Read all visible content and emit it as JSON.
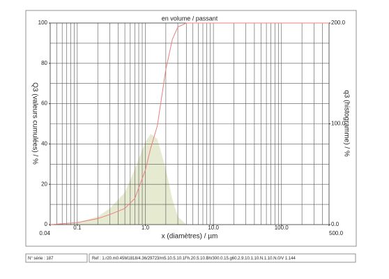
{
  "chart_data": {
    "type": "psd",
    "title": "en volume / passant",
    "xlabel": "x (diamètres) / µm",
    "ylabel": "Q3 (valeurs cumulées) / %",
    "y2label": "q3 (histogramme) / %",
    "xscale": "log",
    "xlim": [
      0.04,
      500
    ],
    "xticks": [
      0.04,
      0.1,
      {
        "value": 1,
        "label": "1.0"
      },
      {
        "value": 10,
        "label": "10.0"
      },
      {
        "value": 100,
        "label": "100.0"
      },
      {
        "value": 500,
        "label": "500.0"
      }
    ],
    "xgrid": [
      0.05,
      0.06,
      0.07,
      0.08,
      0.09,
      0.1,
      0.2,
      0.3,
      0.4,
      0.5,
      0.6,
      0.7,
      0.8,
      0.9,
      1,
      2,
      3,
      4,
      5,
      6,
      7,
      8,
      9,
      10,
      20,
      30,
      40,
      50,
      60,
      70,
      80,
      90,
      100,
      200,
      300,
      400
    ],
    "ylim": [
      0,
      100
    ],
    "yticks": [
      0,
      20,
      40,
      60,
      80,
      100
    ],
    "ygrid": [
      10,
      20,
      30,
      40,
      50,
      60,
      70,
      80,
      90
    ],
    "y2lim": [
      0,
      200
    ],
    "y2ticks": [
      {
        "value": 0,
        "label": "0.0"
      },
      {
        "value": 100,
        "label": "100.0"
      },
      {
        "value": 200,
        "label": "200.0"
      }
    ],
    "x": [
      0.04,
      0.1,
      0.2,
      0.3,
      0.5,
      0.7,
      1,
      1.2,
      1.5,
      2,
      2.5,
      3,
      4,
      500
    ],
    "series": [
      {
        "kind": "line",
        "color": "#e88080",
        "values": [
          0,
          1,
          3,
          5,
          8,
          13,
          27,
          38,
          49,
          77,
          92,
          98,
          100,
          100
        ]
      },
      {
        "kind": "area",
        "color": "#e6ead0",
        "axis": "y2",
        "values": [
          0,
          2,
          8,
          16,
          32,
          55,
          82,
          90,
          85,
          55,
          25,
          8,
          0,
          0
        ]
      }
    ]
  },
  "footer": {
    "serial": "N° série : 187",
    "ref": "Ref : 1.r20.m0.45M1818/4.36/29723/m5.10.5.10.1Fh.20.5.10.Bh/300.0.15.g60.2.9.10.1.10.N.1.10.N.0/V 1.144"
  }
}
